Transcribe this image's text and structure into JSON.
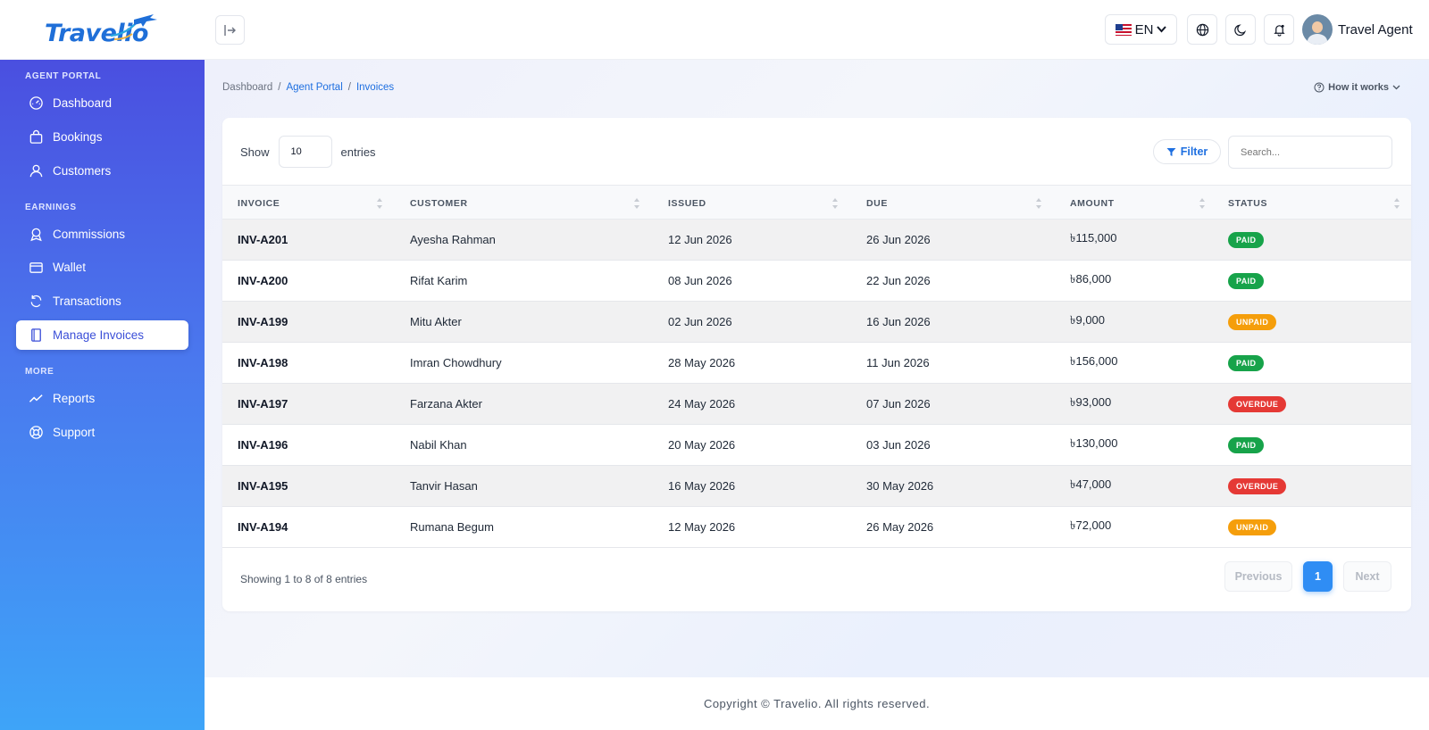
{
  "header": {
    "logo_text": "Travelio",
    "language": "EN",
    "user_name": "Travel Agent"
  },
  "sidebar": {
    "sections": [
      {
        "label": "AGENT PORTAL"
      },
      {
        "label": "EARNINGS"
      },
      {
        "label": "MORE"
      }
    ],
    "items": [
      {
        "label": "Dashboard",
        "icon": "gauge-icon"
      },
      {
        "label": "Bookings",
        "icon": "bag-icon"
      },
      {
        "label": "Customers",
        "icon": "user-icon"
      },
      {
        "label": "Commissions",
        "icon": "award-icon"
      },
      {
        "label": "Wallet",
        "icon": "wallet-icon"
      },
      {
        "label": "Transactions",
        "icon": "refresh-icon"
      },
      {
        "label": "Manage Invoices",
        "icon": "invoice-icon",
        "active": true
      },
      {
        "label": "Reports",
        "icon": "trend-icon"
      },
      {
        "label": "Support",
        "icon": "lifebuoy-icon"
      }
    ]
  },
  "breadcrumb": [
    "Dashboard",
    "Agent Portal",
    "Invoices"
  ],
  "how_it_works": "How it works",
  "table_controls": {
    "show_label": "Show",
    "page_size": "10",
    "entries_label": "entries",
    "filter_label": "Filter",
    "search_placeholder": "Search..."
  },
  "columns": [
    "INVOICE",
    "CUSTOMER",
    "ISSUED",
    "DUE",
    "AMOUNT",
    "STATUS"
  ],
  "rows": [
    {
      "invoice": "INV-A201",
      "customer": "Ayesha Rahman",
      "issued": "12 Jun 2026",
      "due": "26 Jun 2026",
      "amount": "৳115,000",
      "status": "PAID"
    },
    {
      "invoice": "INV-A200",
      "customer": "Rifat Karim",
      "issued": "08 Jun 2026",
      "due": "22 Jun 2026",
      "amount": "৳86,000",
      "status": "PAID"
    },
    {
      "invoice": "INV-A199",
      "customer": "Mitu Akter",
      "issued": "02 Jun 2026",
      "due": "16 Jun 2026",
      "amount": "৳9,000",
      "status": "UNPAID"
    },
    {
      "invoice": "INV-A198",
      "customer": "Imran Chowdhury",
      "issued": "28 May 2026",
      "due": "11 Jun 2026",
      "amount": "৳156,000",
      "status": "PAID"
    },
    {
      "invoice": "INV-A197",
      "customer": "Farzana Akter",
      "issued": "24 May 2026",
      "due": "07 Jun 2026",
      "amount": "৳93,000",
      "status": "OVERDUE"
    },
    {
      "invoice": "INV-A196",
      "customer": "Nabil Khan",
      "issued": "20 May 2026",
      "due": "03 Jun 2026",
      "amount": "৳130,000",
      "status": "PAID"
    },
    {
      "invoice": "INV-A195",
      "customer": "Tanvir Hasan",
      "issued": "16 May 2026",
      "due": "30 May 2026",
      "amount": "৳47,000",
      "status": "OVERDUE"
    },
    {
      "invoice": "INV-A194",
      "customer": "Rumana Begum",
      "issued": "12 May 2026",
      "due": "26 May 2026",
      "amount": "৳72,000",
      "status": "UNPAID"
    }
  ],
  "pagination": {
    "info": "Showing 1 to 8 of 8 entries",
    "previous": "Previous",
    "current": "1",
    "next": "Next"
  },
  "footer": "Copyright © Travelio. All rights reserved.",
  "colors": {
    "accent": "#1e6fe0",
    "sidebar_top": "#4a4fe0",
    "sidebar_bottom": "#3ea4f8",
    "paid": "#17a34a",
    "unpaid": "#f59e0b",
    "overdue": "#e53935"
  }
}
